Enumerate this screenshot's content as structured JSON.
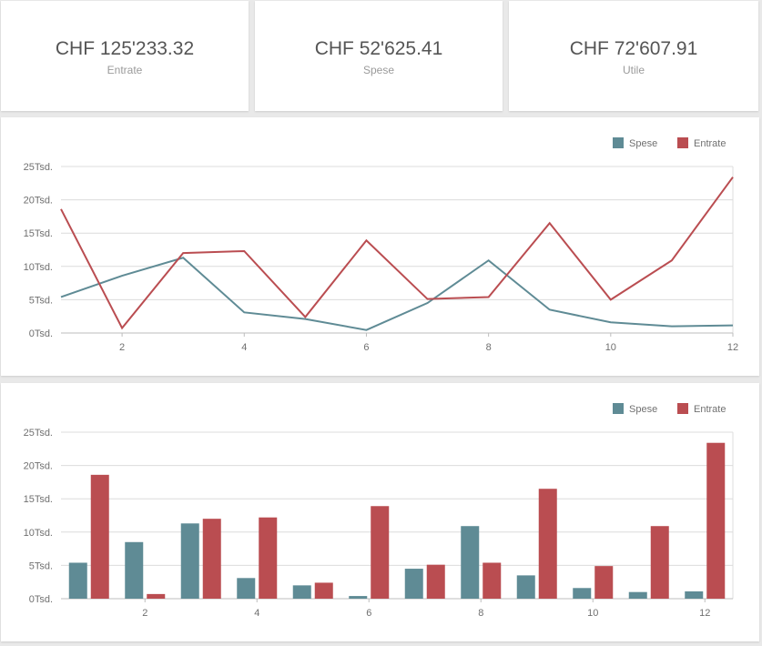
{
  "kpis": [
    {
      "value": "CHF 125'233.32",
      "label": "Entrate"
    },
    {
      "value": "CHF 52'625.41",
      "label": "Spese"
    },
    {
      "value": "CHF 72'607.91",
      "label": "Utile"
    }
  ],
  "colors": {
    "spese": "#5f8b95",
    "entrate": "#ba4d51",
    "grid": "#dcdcdc",
    "text": "#707070"
  },
  "chart_data": [
    {
      "type": "line",
      "x": [
        1,
        2,
        3,
        4,
        5,
        6,
        7,
        8,
        9,
        10,
        11,
        12
      ],
      "series": [
        {
          "name": "Spese",
          "values": [
            5400,
            8600,
            11300,
            3100,
            2100,
            450,
            4500,
            10900,
            3500,
            1600,
            1000,
            1150
          ]
        },
        {
          "name": "Entrate",
          "values": [
            18600,
            750,
            12000,
            12300,
            2400,
            13900,
            5100,
            5400,
            16500,
            5000,
            10900,
            23400
          ]
        }
      ],
      "ylim": [
        0,
        25000
      ],
      "yticks": [
        "0Tsd.",
        "5Tsd.",
        "10Tsd.",
        "15Tsd.",
        "20Tsd.",
        "25Tsd."
      ],
      "xticks": [
        "2",
        "4",
        "6",
        "8",
        "10",
        "12"
      ],
      "legend": [
        "Spese",
        "Entrate"
      ],
      "legend_position": "top-right",
      "grid": true
    },
    {
      "type": "bar",
      "x": [
        1,
        2,
        3,
        4,
        5,
        6,
        7,
        8,
        9,
        10,
        11,
        12
      ],
      "series": [
        {
          "name": "Spese",
          "values": [
            5400,
            8500,
            11300,
            3100,
            2000,
            400,
            4500,
            10900,
            3500,
            1600,
            1000,
            1100
          ]
        },
        {
          "name": "Entrate",
          "values": [
            18600,
            700,
            12000,
            12200,
            2400,
            13900,
            5100,
            5400,
            16500,
            4900,
            10900,
            23400
          ]
        }
      ],
      "ylim": [
        0,
        25000
      ],
      "yticks": [
        "0Tsd.",
        "5Tsd.",
        "10Tsd.",
        "15Tsd.",
        "20Tsd.",
        "25Tsd."
      ],
      "xticks": [
        "2",
        "4",
        "6",
        "8",
        "10",
        "12"
      ],
      "legend": [
        "Spese",
        "Entrate"
      ],
      "legend_position": "top-right",
      "grid": true
    }
  ]
}
